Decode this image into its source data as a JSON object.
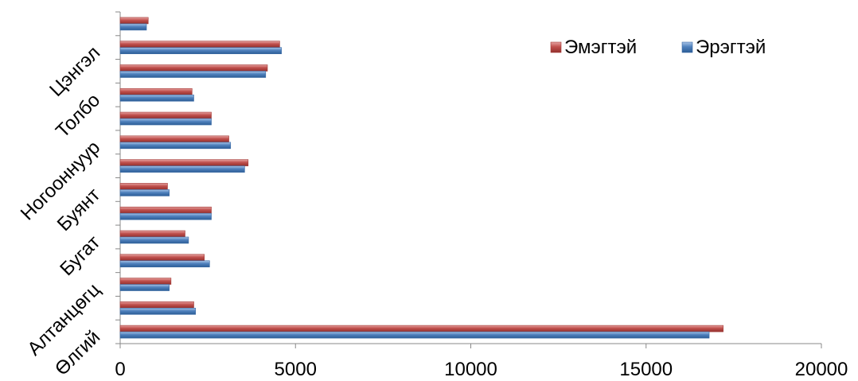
{
  "chart_data": {
    "type": "bar",
    "orientation": "horizontal",
    "categories": [
      "Өлгий",
      "",
      "Алтанцөгц",
      "",
      "Бугат",
      "",
      "Буянт",
      "",
      "Ногооннуур",
      "",
      "Толбо",
      "",
      "Цэнгэл",
      ""
    ],
    "series": [
      {
        "name": "Эрэгтэй",
        "color": "#4f81bd",
        "values": [
          16800,
          2150,
          1400,
          2550,
          1950,
          2600,
          1400,
          3550,
          3150,
          2600,
          2100,
          4150,
          4600,
          750
        ]
      },
      {
        "name": "Эмэгтэй",
        "color": "#c0504d",
        "values": [
          17200,
          2100,
          1450,
          2400,
          1850,
          2600,
          1350,
          3650,
          3100,
          2600,
          2050,
          4200,
          4550,
          800
        ]
      }
    ],
    "xlim": [
      0,
      20000
    ],
    "xticks": [
      0,
      5000,
      10000,
      15000,
      20000
    ],
    "grid": false,
    "legend": "top-right"
  }
}
